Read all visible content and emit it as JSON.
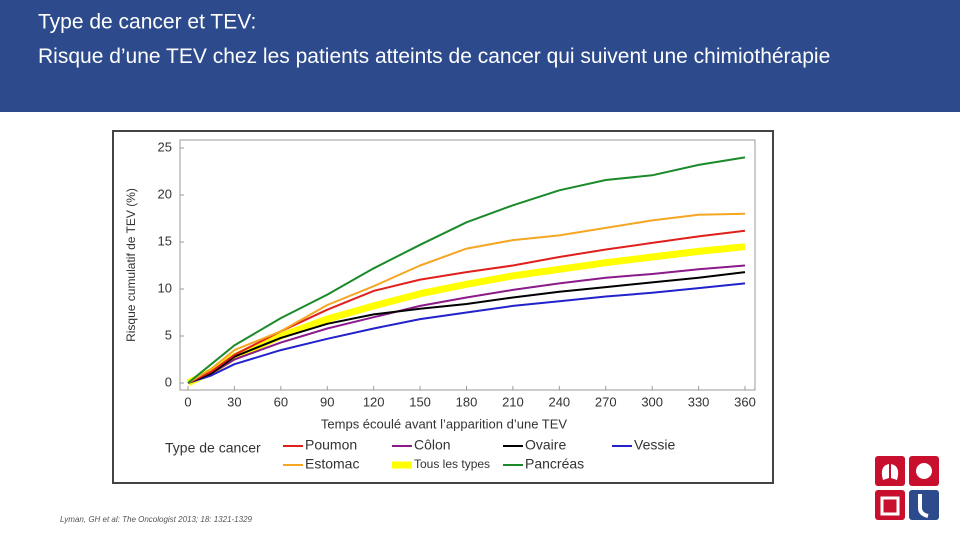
{
  "chart_data": {
    "type": "line",
    "title": "Type de cancer et TEV:",
    "subtitle": "Risque d’une TEV chez les patients atteints de cancer qui suivent une chimiothérapie",
    "x_label": "Temps écoulé avant l’apparition d’une TEV",
    "y_label": "Risque cumulatif de TEV (%)",
    "legend_title": "Type de cancer",
    "source": "Lyman, GH et al: The Oncologist 2013; 18: 1321-1329",
    "x": [
      0,
      15,
      30,
      60,
      90,
      120,
      150,
      180,
      210,
      240,
      270,
      300,
      330,
      360
    ],
    "xlim": [
      0,
      360
    ],
    "xticks": [
      0,
      30,
      60,
      90,
      120,
      150,
      180,
      210,
      240,
      270,
      300,
      330,
      360
    ],
    "ylim": [
      0,
      25
    ],
    "yticks": [
      0,
      5,
      10,
      15,
      20,
      25
    ],
    "series": [
      {
        "name": "Poumon",
        "color": "#e0201c",
        "values": [
          0,
          1.2,
          3,
          5.5,
          7.8,
          9.8,
          11,
          11.8,
          12.5,
          13.4,
          14.2,
          14.9,
          15.6,
          16.2
        ]
      },
      {
        "name": "Côlon",
        "color": "#8b1a8b",
        "values": [
          0,
          1,
          2.5,
          4.3,
          5.8,
          7,
          8.2,
          9.1,
          9.9,
          10.6,
          11.2,
          11.6,
          12.1,
          12.5
        ]
      },
      {
        "name": "Ovaire",
        "color": "#000000",
        "values": [
          0,
          1,
          2.8,
          4.8,
          6.3,
          7.3,
          7.9,
          8.4,
          9.1,
          9.7,
          10.2,
          10.7,
          11.2,
          11.8
        ]
      },
      {
        "name": "Vessie",
        "color": "#2222cc",
        "values": [
          0,
          0.8,
          2,
          3.5,
          4.7,
          5.8,
          6.8,
          7.5,
          8.2,
          8.7,
          9.2,
          9.6,
          10.1,
          10.6
        ]
      },
      {
        "name": "Estomac",
        "color": "#f5a623",
        "values": [
          0,
          1.5,
          3.5,
          5.5,
          8.3,
          10.3,
          12.5,
          14.3,
          15.2,
          15.7,
          16.5,
          17.3,
          17.9,
          18
        ]
      },
      {
        "name": "Tous les types",
        "color": "#ffff00",
        "width": 7,
        "values": [
          0,
          1.2,
          2.8,
          5,
          6.8,
          8.2,
          9.5,
          10.5,
          11.4,
          12.1,
          12.8,
          13.4,
          14,
          14.5
        ]
      },
      {
        "name": "Pancréas",
        "color": "#1a8a2a",
        "values": [
          0,
          2,
          4,
          6.9,
          9.4,
          12.2,
          14.7,
          17.1,
          18.9,
          20.5,
          21.6,
          22.1,
          23.2,
          24
        ]
      }
    ]
  }
}
